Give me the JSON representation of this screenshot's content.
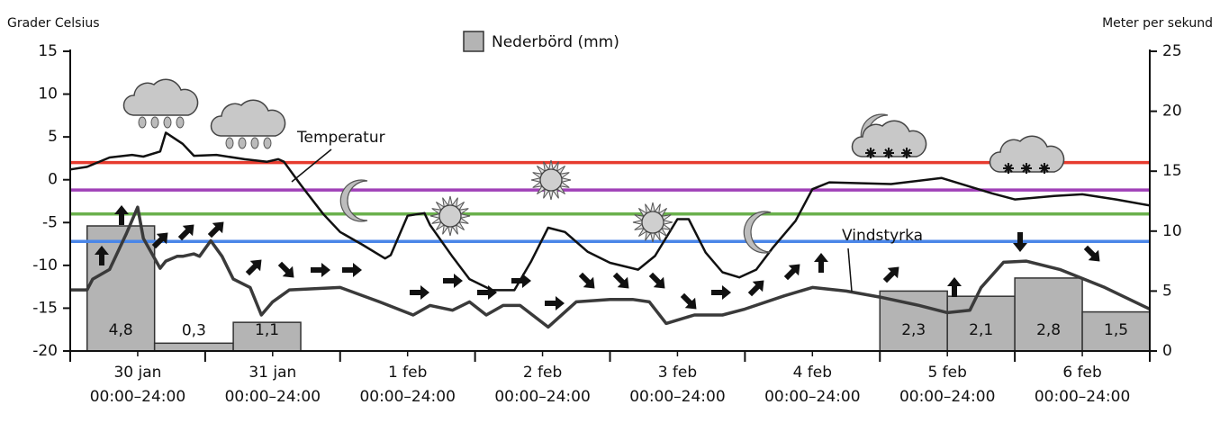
{
  "chart_data": {
    "type": "line",
    "y_axis_label": "Grader Celsius",
    "y2_axis_label": "Meter per sekund",
    "categories": [
      "30 jan",
      "31 jan",
      "1 feb",
      "2 feb",
      "3 feb",
      "4 feb",
      "5 feb",
      "6 feb"
    ],
    "time_range_labels": [
      "00:00–24:00",
      "00:00–24:00",
      "00:00–24:00",
      "00:00–24:00",
      "00:00–24:00",
      "00:00–24:00",
      "00:00–24:00",
      "00:00–24:00"
    ],
    "xlim": [
      0,
      192
    ],
    "ylim": [
      -20,
      15
    ],
    "yticks": [
      -20,
      -15,
      -10,
      -5,
      0,
      5,
      10,
      15
    ],
    "y2lim": [
      0,
      25
    ],
    "y2ticks": [
      0,
      5,
      10,
      15,
      20,
      25
    ],
    "y3lim": [
      0,
      11.5
    ],
    "reference_lines": [
      {
        "value": 2,
        "color": "#e63b2e"
      },
      {
        "value": -1.2,
        "color": "#a040b8"
      },
      {
        "value": -4,
        "color": "#6ab04c"
      },
      {
        "value": -7.2,
        "color": "#4a86e8"
      }
    ],
    "series": [
      {
        "name": "Temperatur",
        "color": "#111111",
        "x": [
          0,
          3,
          7,
          11,
          13,
          16,
          17,
          20,
          22,
          26,
          31,
          35,
          37,
          38,
          41,
          45,
          48,
          52,
          56,
          57,
          60,
          63,
          64,
          68,
          71,
          75,
          79,
          82,
          85,
          88,
          92,
          96,
          101,
          104,
          108,
          110,
          113,
          116,
          119,
          122,
          125,
          129,
          132,
          135,
          146,
          155,
          159,
          164,
          168,
          175,
          180,
          186,
          192
        ],
        "values": [
          1.2,
          1.5,
          2.6,
          2.9,
          2.7,
          3.3,
          5.5,
          4.2,
          2.8,
          2.9,
          2.4,
          2.1,
          2.4,
          2.1,
          -0.6,
          -4,
          -6.1,
          -7.6,
          -9.2,
          -8.8,
          -4.2,
          -3.9,
          -5.3,
          -9,
          -11.6,
          -12.9,
          -12.9,
          -9.5,
          -5.6,
          -6.1,
          -8.4,
          -9.7,
          -10.5,
          -8.9,
          -4.6,
          -4.6,
          -8.5,
          -10.8,
          -11.4,
          -10.5,
          -7.9,
          -4.8,
          -1.1,
          -0.3,
          -0.5,
          0.2,
          -0.6,
          -1.6,
          -2.3,
          -1.9,
          -1.7,
          -2.3,
          -3.0
        ]
      },
      {
        "name": "Vindstyrka",
        "color": "#3a3a3a",
        "axis": "y2",
        "x": [
          0,
          3,
          4,
          7,
          10,
          12,
          13,
          16,
          17,
          19,
          20,
          22,
          23,
          25,
          27,
          29,
          32,
          34,
          36,
          39,
          48,
          55,
          61,
          64,
          68,
          71,
          74,
          77,
          80,
          85,
          90,
          96,
          100,
          103,
          106,
          111,
          116,
          120,
          127,
          132,
          138,
          144,
          151,
          156,
          160,
          162,
          166,
          170,
          176,
          184,
          192
        ],
        "values": [
          5.1,
          5.1,
          6,
          6.8,
          9.8,
          12,
          9.4,
          6.9,
          7.5,
          7.9,
          7.9,
          8.1,
          7.9,
          9.2,
          7.9,
          6,
          5.3,
          3,
          4.1,
          5.1,
          5.3,
          4.1,
          3,
          3.8,
          3.4,
          4.1,
          3,
          3.8,
          3.8,
          2,
          4.1,
          4.3,
          4.3,
          4.1,
          2.3,
          3,
          3,
          3.5,
          4.6,
          5.3,
          5,
          4.5,
          3.8,
          3.2,
          3.4,
          5.3,
          7.4,
          7.5,
          6.8,
          5.3,
          3.5
        ]
      }
    ],
    "precipitation": {
      "name": "Nederbörd (mm)",
      "color": "#b4b4b4",
      "starts": [
        3,
        15,
        29,
        144,
        156,
        168,
        180
      ],
      "ends": [
        15,
        29,
        41,
        156,
        168,
        180,
        192
      ],
      "values": [
        4.8,
        0.3,
        1.1,
        2.3,
        2.1,
        2.8,
        1.5
      ],
      "value_labels": [
        "4,8",
        "0,3",
        "1,1",
        "2,3",
        "2,1",
        "2,8",
        "1,5"
      ]
    }
  }
}
